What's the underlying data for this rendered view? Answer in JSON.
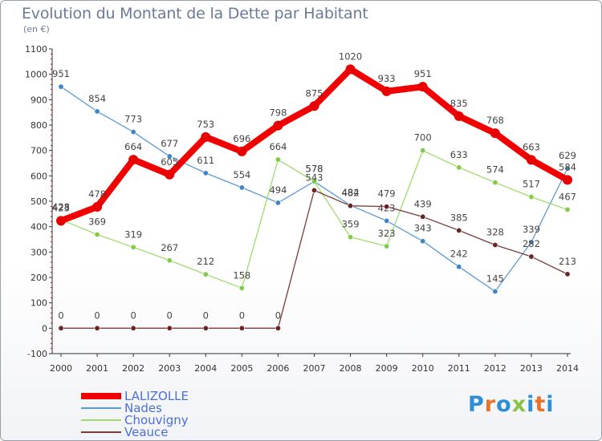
{
  "title": "Evolution du Montant de la Dette par Habitant",
  "subtitle": "(en €)",
  "logo": {
    "letters": [
      "P",
      "r",
      "o",
      "x",
      "i",
      "t",
      "i"
    ],
    "colors": [
      "#2e8fd6",
      "#e8732a",
      "#2e8fd6",
      "#8bc34a",
      "#2e8fd6",
      "#e8732a",
      "#2e8fd6"
    ]
  },
  "chart_data": {
    "type": "line",
    "x": [
      "2000",
      "2001",
      "2002",
      "2003",
      "2004",
      "2005",
      "2006",
      "2007",
      "2008",
      "2009",
      "2010",
      "2011",
      "2012",
      "2013",
      "2014"
    ],
    "ylim": [
      -100,
      1100
    ],
    "yticks": [
      "-100",
      "0",
      "100",
      "200",
      "300",
      "400",
      "500",
      "600",
      "700",
      "800",
      "900",
      "1000",
      "1100"
    ],
    "grid": false,
    "legend_position": "bottom-left",
    "series": [
      {
        "name": "Nades",
        "color": "#5b9bd5",
        "marker": "#3f86c8",
        "values": [
          951,
          854,
          773,
          677,
          611,
          554,
          494,
          578,
          484,
          423,
          343,
          242,
          145,
          339,
          629
        ],
        "labels": [
          "951",
          "854",
          "773",
          "677",
          "611",
          "554",
          "494",
          "578",
          "484",
          "423",
          "343",
          "242",
          "145",
          "339",
          "629"
        ]
      },
      {
        "name": "Chouvigny",
        "color": "#9fdc6c",
        "marker": "#7fcc45",
        "values": [
          428,
          369,
          319,
          267,
          212,
          158,
          664,
          578,
          359,
          323,
          700,
          633,
          574,
          517,
          467
        ],
        "labels": [
          "428",
          "369",
          "319",
          "267",
          "212",
          "158",
          "664",
          "578",
          "359",
          "323",
          "700",
          "633",
          "574",
          "517",
          "467"
        ]
      },
      {
        "name": "Veauce",
        "color": "#7a3b3b",
        "marker": "#6a2424",
        "values": [
          0,
          0,
          0,
          0,
          0,
          0,
          0,
          543,
          482,
          479,
          439,
          385,
          328,
          282,
          213
        ],
        "labels": [
          "0",
          "0",
          "0",
          "0",
          "0",
          "0",
          "0",
          "543",
          "482",
          "479",
          "439",
          "385",
          "328",
          "282",
          "213"
        ]
      },
      {
        "name": "LALIZOLLE",
        "color": "#f00000",
        "marker": "#e80000",
        "values": [
          423,
          478,
          664,
          605,
          753,
          696,
          798,
          875,
          1020,
          933,
          951,
          835,
          768,
          663,
          584
        ],
        "labels": [
          "423",
          "478",
          "664",
          "605",
          "753",
          "696",
          "798",
          "875",
          "1020",
          "933",
          "951",
          "835",
          "768",
          "663",
          "584"
        ]
      }
    ]
  },
  "legend": [
    {
      "label": "LALIZOLLE",
      "color": "#f00000",
      "width": 8
    },
    {
      "label": "Nades",
      "color": "#5b9bd5",
      "width": 2
    },
    {
      "label": "Chouvigny",
      "color": "#9fdc6c",
      "width": 2
    },
    {
      "label": "Veauce",
      "color": "#7a3b3b",
      "width": 2
    }
  ]
}
